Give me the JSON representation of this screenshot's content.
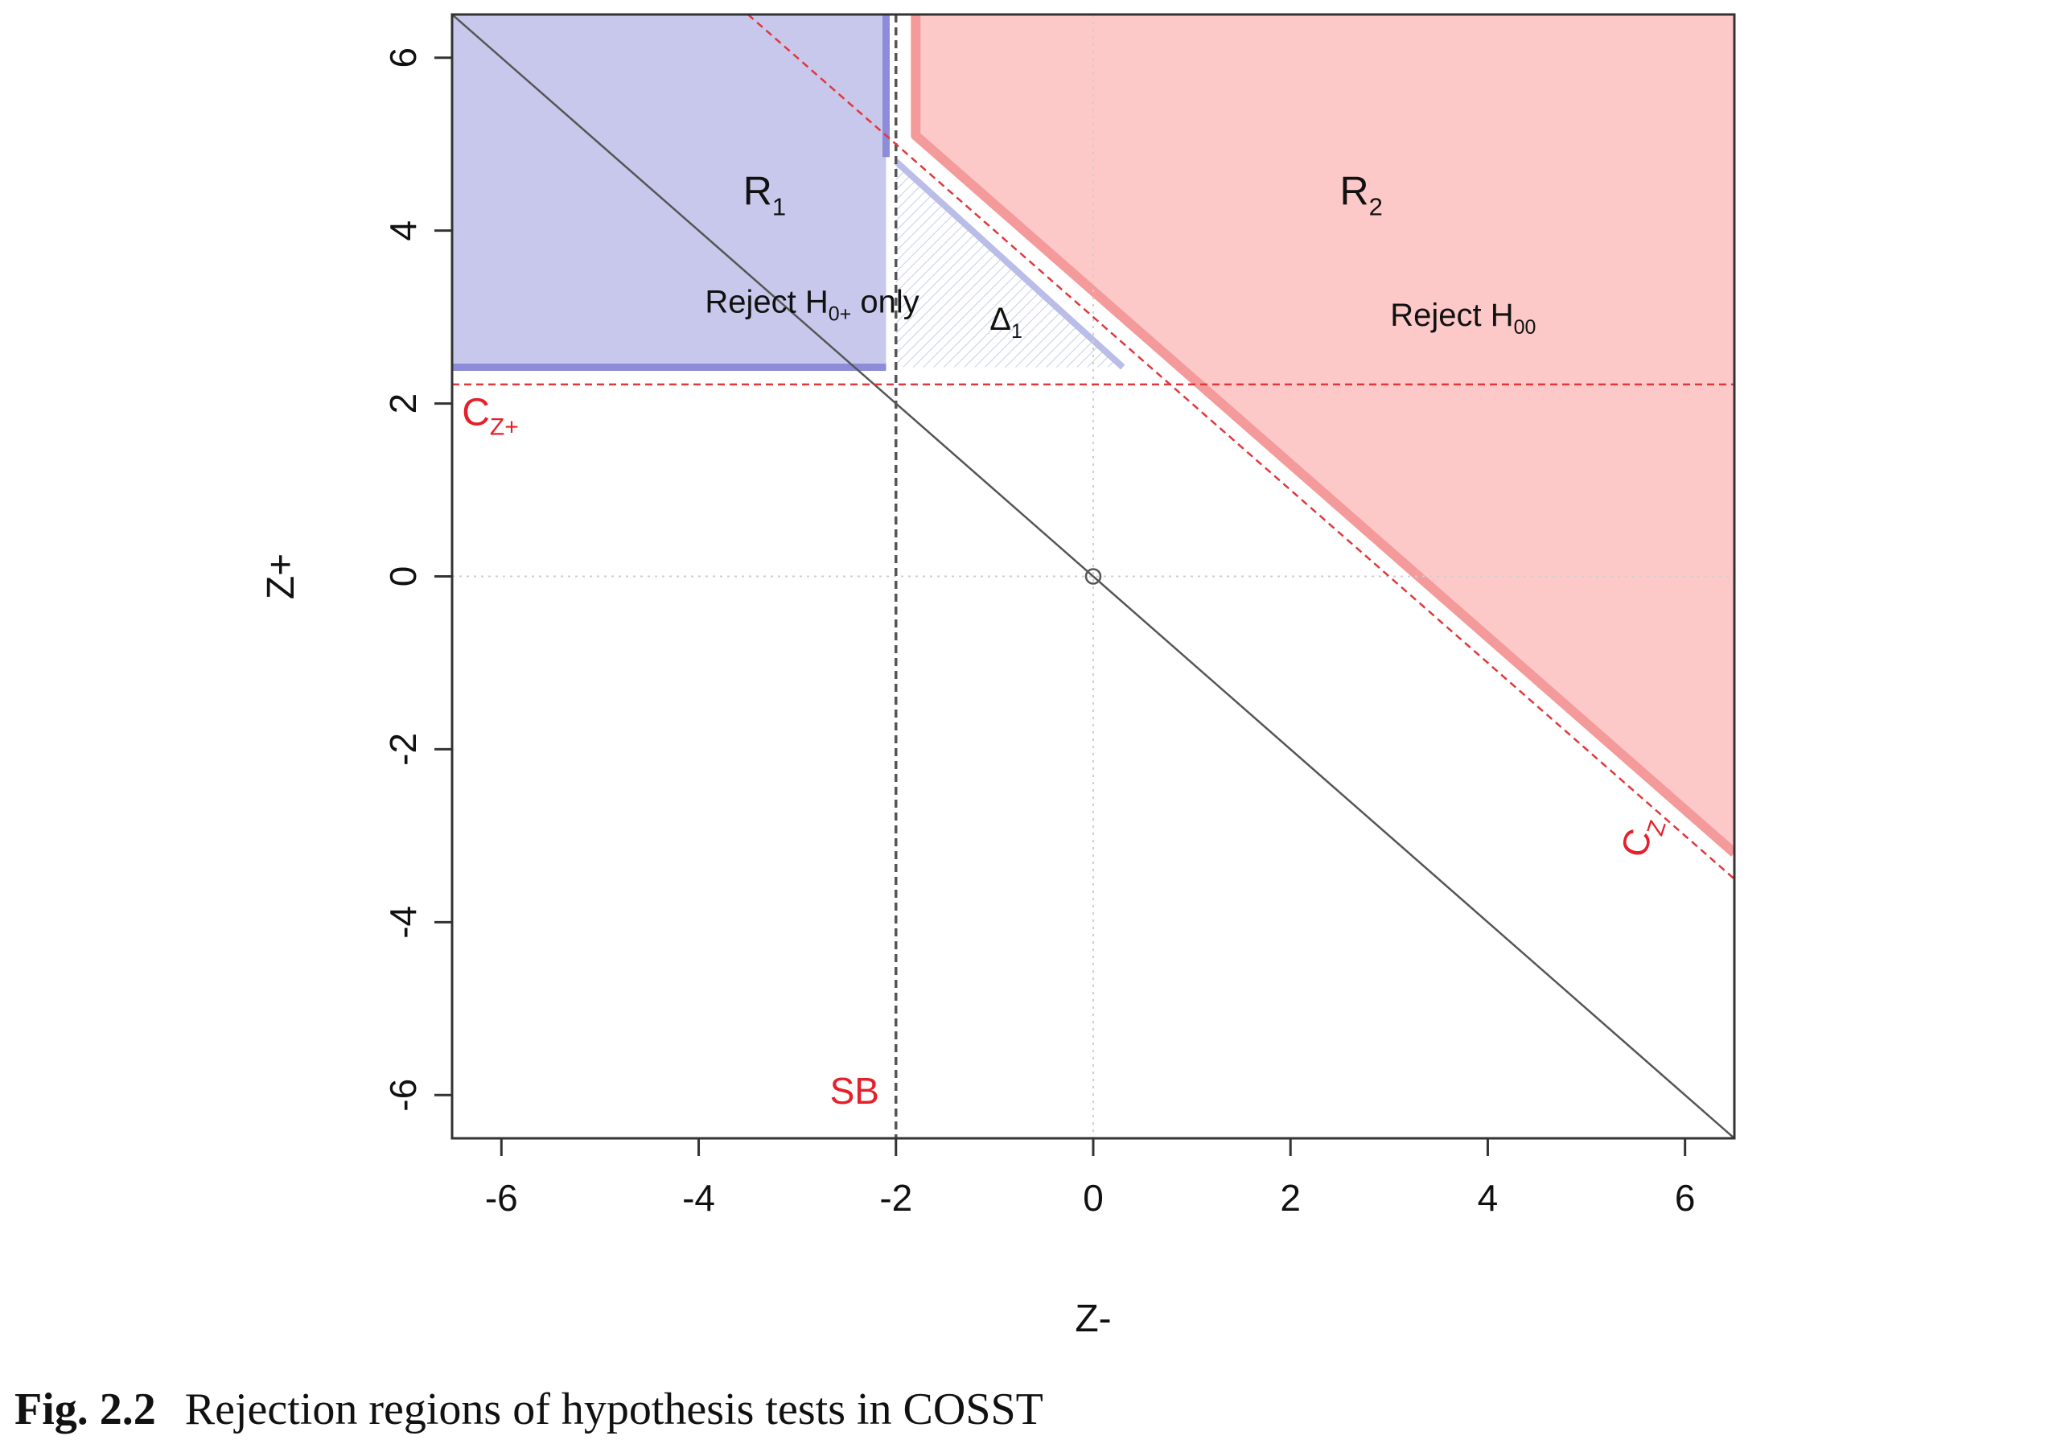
{
  "caption": {
    "label": "Fig. 2.2",
    "text": "Rejection regions of hypothesis tests in COSST"
  },
  "chart_data": {
    "type": "area",
    "xlabel": "Z-",
    "ylabel": "Z+",
    "xlim": [
      -6.5,
      6.5
    ],
    "ylim": [
      -6.5,
      6.5
    ],
    "xticks": [
      -6,
      -4,
      -2,
      0,
      2,
      4,
      6
    ],
    "yticks": [
      -6,
      -4,
      -2,
      0,
      2,
      4,
      6
    ],
    "grid": true,
    "colors": {
      "r1_fill": "#c8c8ec",
      "r1_border": "#8c8cd8",
      "r2_fill": "#fdc8c8",
      "r2_border": "#f49a9a",
      "threshold": "#e0383c",
      "label_red": "#e5202a",
      "diagonal": "#555555"
    },
    "regions": [
      {
        "name": "R1",
        "label_main": "R",
        "label_sub": "1",
        "description": "Reject H",
        "description_sub": "0+",
        "description_tail": " only",
        "polygon": [
          [
            -6.5,
            2.42
          ],
          [
            -2.1,
            2.42
          ],
          [
            -2.1,
            6.5
          ],
          [
            -6.5,
            6.5
          ]
        ],
        "label_pos": [
          -3.55,
          4.3
        ],
        "description_pos": [
          -2.85,
          3.05
        ]
      },
      {
        "name": "R2",
        "label_main": "R",
        "label_sub": "2",
        "description": "Reject H",
        "description_sub": "00",
        "description_tail": "",
        "polygon": [
          [
            -1.8,
            6.5
          ],
          [
            6.5,
            6.5
          ],
          [
            6.5,
            -3.2
          ],
          [
            -1.8,
            5.1
          ]
        ],
        "label_pos": [
          2.5,
          4.3
        ],
        "description_pos": [
          3.75,
          2.9
        ]
      },
      {
        "name": "Delta1",
        "label_main": "Δ",
        "label_sub": "1",
        "polygon": [
          [
            -2.0,
            4.8
          ],
          [
            0.3,
            2.42
          ],
          [
            -2.0,
            2.42
          ]
        ],
        "label_pos": [
          -1.05,
          2.85
        ]
      }
    ],
    "lines": [
      {
        "name": "diagonal",
        "points": [
          [
            -6.5,
            6.5
          ],
          [
            6.5,
            -6.5
          ]
        ]
      },
      {
        "name": "SB",
        "label": "SB",
        "x": -2.0,
        "label_pos": [
          -2.42,
          -6.1
        ]
      },
      {
        "name": "CZ+",
        "label_main": "C",
        "label_sub": "Z+",
        "y": 2.22,
        "label_pos": [
          -6.4,
          1.75
        ]
      },
      {
        "name": "CZ",
        "label_main": "C",
        "label_sub": "Z",
        "points": [
          [
            -3.5,
            6.5
          ],
          [
            6.5,
            -3.5
          ]
        ],
        "label_pos": [
          5.65,
          -3.05
        ]
      }
    ],
    "points": [
      {
        "x": 0,
        "y": 0,
        "marker": "open-circle"
      }
    ]
  }
}
